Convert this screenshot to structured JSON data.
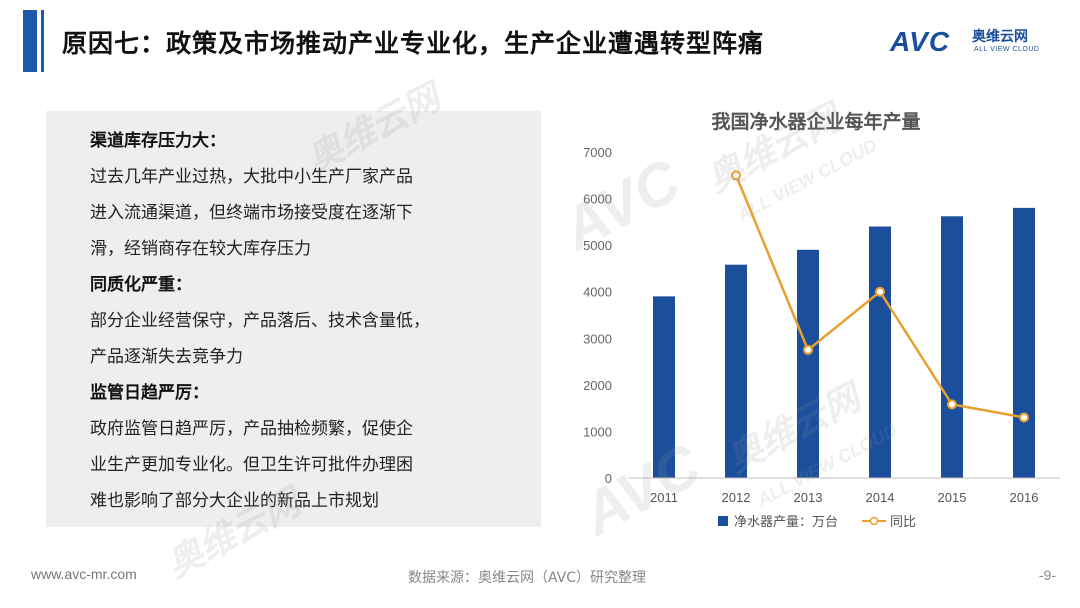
{
  "slide": {
    "title": "原因七：政策及市场推动产业专业化，生产企业遭遇转型阵痛",
    "page_number": "-9-"
  },
  "logo": {
    "mark": "AVC",
    "cn": "奥维云网",
    "en": "ALL VIEW CLOUD",
    "color": "#1b4f9c"
  },
  "sections": [
    {
      "heading": "渠道库存压力大：",
      "lines": [
        "过去几年产业过热，大批中小生产厂家产品",
        "进入流通渠道，但终端市场接受度在逐渐下",
        "滑，经销商存在较大库存压力"
      ]
    },
    {
      "heading": "同质化严重：",
      "lines": [
        "部分企业经营保守，产品落后、技术含量低，",
        "产品逐渐失去竞争力"
      ]
    },
    {
      "heading": "监管日趋严厉：",
      "lines": [
        "政府监管日趋严厉，产品抽检频繁，促使企",
        "业生产更加专业化。但卫生许可批件办理困",
        "难也影响了部分大企业的新品上市规划"
      ]
    }
  ],
  "chart_data": {
    "type": "bar",
    "title": "我国净水器企业每年产量",
    "categories": [
      "2011",
      "2012",
      "2013",
      "2014",
      "2015",
      "2016"
    ],
    "series": [
      {
        "name": "净水器产量：万台",
        "type": "bar",
        "color": "#1b4f9c",
        "values": [
          3900,
          4580,
          4900,
          5400,
          5620,
          5800
        ]
      },
      {
        "name": "同比",
        "type": "line",
        "color": "#e8a030",
        "values": [
          null,
          6500,
          2750,
          4000,
          1580,
          1300
        ]
      }
    ],
    "yticks": [
      "0",
      "1000",
      "2000",
      "3000",
      "4000",
      "5000",
      "6000",
      "7000"
    ],
    "ylim": [
      0,
      7000
    ],
    "grid": false,
    "legend_position": "bottom"
  },
  "footer": {
    "website": "www.avc-mr.com",
    "source": "数据来源：奥维云网（AVC）研究整理"
  },
  "watermark": {
    "mark": "AVC",
    "cn": "奥维云网",
    "en": "ALL VIEW CLOUD"
  },
  "colors": {
    "accent": "#1b5aa8",
    "panel_bg": "#eeeeee"
  }
}
